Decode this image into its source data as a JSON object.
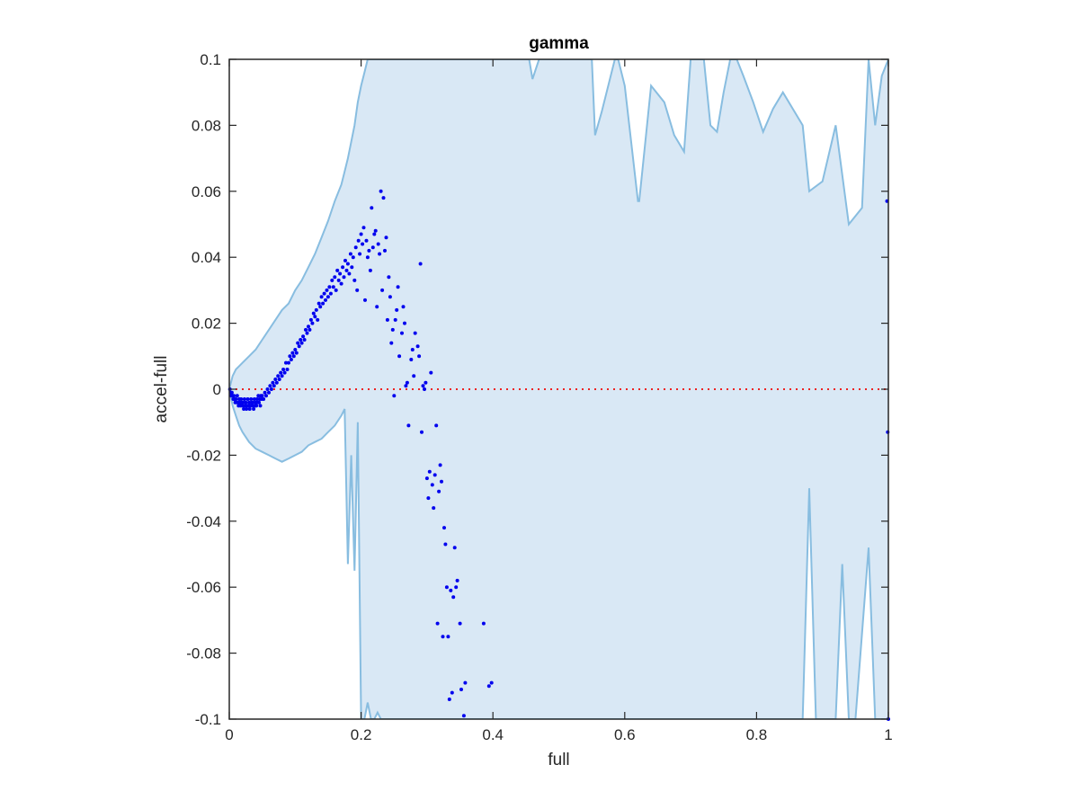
{
  "chart_data": {
    "type": "scatter",
    "title": "gamma",
    "xlabel": "full",
    "ylabel": "accel-full",
    "xlim": [
      0,
      1
    ],
    "ylim": [
      -0.1,
      0.1
    ],
    "xticks": [
      0,
      0.2,
      0.4,
      0.6,
      0.8,
      1
    ],
    "xtick_labels": [
      "0",
      "0.2",
      "0.4",
      "0.6",
      "0.8",
      "1"
    ],
    "yticks": [
      -0.1,
      -0.08,
      -0.06,
      -0.04,
      -0.02,
      0,
      0.02,
      0.04,
      0.06,
      0.08,
      0.1
    ],
    "ytick_labels": [
      "-0.1",
      "-0.08",
      "-0.06",
      "-0.04",
      "-0.02",
      "0",
      "0.02",
      "0.04",
      "0.06",
      "0.08",
      "0.1"
    ],
    "grid": false,
    "colors": {
      "band_fill": "#d9e8f5",
      "band_edge": "#88bde0",
      "points": "#0000ee",
      "reference": "#ee2222",
      "axes": "#262626"
    },
    "reference_line": {
      "y": 0,
      "style": "dotted"
    },
    "band_upper": [
      [
        0.0,
        0.0
      ],
      [
        0.005,
        0.004
      ],
      [
        0.01,
        0.006
      ],
      [
        0.015,
        0.007
      ],
      [
        0.02,
        0.008
      ],
      [
        0.03,
        0.01
      ],
      [
        0.04,
        0.012
      ],
      [
        0.05,
        0.015
      ],
      [
        0.06,
        0.018
      ],
      [
        0.07,
        0.021
      ],
      [
        0.08,
        0.024
      ],
      [
        0.09,
        0.026
      ],
      [
        0.1,
        0.03
      ],
      [
        0.11,
        0.033
      ],
      [
        0.12,
        0.037
      ],
      [
        0.13,
        0.041
      ],
      [
        0.14,
        0.046
      ],
      [
        0.15,
        0.051
      ],
      [
        0.16,
        0.057
      ],
      [
        0.17,
        0.062
      ],
      [
        0.175,
        0.066
      ],
      [
        0.18,
        0.07
      ],
      [
        0.185,
        0.075
      ],
      [
        0.19,
        0.08
      ],
      [
        0.195,
        0.087
      ],
      [
        0.2,
        0.092
      ],
      [
        0.205,
        0.096
      ],
      [
        0.21,
        0.1
      ],
      [
        0.25,
        0.1
      ],
      [
        0.4,
        0.1
      ],
      [
        0.455,
        0.1
      ],
      [
        0.46,
        0.094
      ],
      [
        0.47,
        0.1
      ],
      [
        0.52,
        0.1
      ],
      [
        0.55,
        0.1
      ],
      [
        0.555,
        0.077
      ],
      [
        0.565,
        0.084
      ],
      [
        0.585,
        0.1
      ],
      [
        0.59,
        0.1
      ],
      [
        0.6,
        0.092
      ],
      [
        0.62,
        0.057
      ],
      [
        0.62,
        0.057
      ],
      [
        0.622,
        0.057
      ],
      [
        0.64,
        0.092
      ],
      [
        0.66,
        0.087
      ],
      [
        0.675,
        0.077
      ],
      [
        0.69,
        0.072
      ],
      [
        0.7,
        0.1
      ],
      [
        0.72,
        0.1
      ],
      [
        0.73,
        0.08
      ],
      [
        0.74,
        0.078
      ],
      [
        0.75,
        0.09
      ],
      [
        0.76,
        0.1
      ],
      [
        0.77,
        0.1
      ],
      [
        0.78,
        0.095
      ],
      [
        0.795,
        0.087
      ],
      [
        0.81,
        0.078
      ],
      [
        0.825,
        0.085
      ],
      [
        0.84,
        0.09
      ],
      [
        0.87,
        0.08
      ],
      [
        0.88,
        0.06
      ],
      [
        0.9,
        0.063
      ],
      [
        0.92,
        0.08
      ],
      [
        0.94,
        0.05
      ],
      [
        0.96,
        0.055
      ],
      [
        0.97,
        0.1
      ],
      [
        0.98,
        0.08
      ],
      [
        0.99,
        0.095
      ],
      [
        1.0,
        0.1
      ]
    ],
    "band_lower": [
      [
        0.0,
        0.0
      ],
      [
        0.005,
        -0.005
      ],
      [
        0.01,
        -0.008
      ],
      [
        0.015,
        -0.011
      ],
      [
        0.02,
        -0.013
      ],
      [
        0.03,
        -0.016
      ],
      [
        0.04,
        -0.018
      ],
      [
        0.05,
        -0.019
      ],
      [
        0.06,
        -0.02
      ],
      [
        0.07,
        -0.021
      ],
      [
        0.08,
        -0.022
      ],
      [
        0.09,
        -0.021
      ],
      [
        0.1,
        -0.02
      ],
      [
        0.11,
        -0.019
      ],
      [
        0.12,
        -0.017
      ],
      [
        0.13,
        -0.016
      ],
      [
        0.14,
        -0.015
      ],
      [
        0.15,
        -0.013
      ],
      [
        0.16,
        -0.011
      ],
      [
        0.17,
        -0.008
      ],
      [
        0.175,
        -0.006
      ],
      [
        0.18,
        -0.053
      ],
      [
        0.185,
        -0.02
      ],
      [
        0.19,
        -0.055
      ],
      [
        0.195,
        -0.01
      ],
      [
        0.2,
        -0.1
      ],
      [
        0.205,
        -0.1
      ],
      [
        0.21,
        -0.095
      ],
      [
        0.215,
        -0.1
      ],
      [
        0.22,
        -0.1
      ],
      [
        0.225,
        -0.098
      ],
      [
        0.23,
        -0.1
      ],
      [
        0.24,
        -0.1
      ],
      [
        0.245,
        -0.1
      ],
      [
        0.25,
        -0.1
      ],
      [
        0.4,
        -0.1
      ],
      [
        0.6,
        -0.1
      ],
      [
        0.8,
        -0.1
      ],
      [
        0.87,
        -0.1
      ],
      [
        0.88,
        -0.03
      ],
      [
        0.89,
        -0.1
      ],
      [
        0.92,
        -0.1
      ],
      [
        0.93,
        -0.053
      ],
      [
        0.94,
        -0.1
      ],
      [
        0.95,
        -0.1
      ],
      [
        0.97,
        -0.048
      ],
      [
        0.98,
        -0.1
      ],
      [
        1.0,
        -0.1
      ]
    ],
    "points": [
      [
        0.001,
        0.0
      ],
      [
        0.002,
        -0.001
      ],
      [
        0.003,
        -0.002
      ],
      [
        0.004,
        -0.001
      ],
      [
        0.005,
        -0.002
      ],
      [
        0.006,
        -0.003
      ],
      [
        0.007,
        -0.002
      ],
      [
        0.008,
        -0.003
      ],
      [
        0.009,
        -0.004
      ],
      [
        0.01,
        -0.003
      ],
      [
        0.011,
        -0.004
      ],
      [
        0.012,
        -0.002
      ],
      [
        0.013,
        -0.004
      ],
      [
        0.014,
        -0.005
      ],
      [
        0.015,
        -0.003
      ],
      [
        0.016,
        -0.004
      ],
      [
        0.017,
        -0.005
      ],
      [
        0.018,
        -0.003
      ],
      [
        0.019,
        -0.004
      ],
      [
        0.02,
        -0.005
      ],
      [
        0.021,
        -0.004
      ],
      [
        0.022,
        -0.006
      ],
      [
        0.023,
        -0.003
      ],
      [
        0.024,
        -0.005
      ],
      [
        0.025,
        -0.004
      ],
      [
        0.026,
        -0.006
      ],
      [
        0.027,
        -0.005
      ],
      [
        0.028,
        -0.003
      ],
      [
        0.029,
        -0.005
      ],
      [
        0.03,
        -0.004
      ],
      [
        0.031,
        -0.006
      ],
      [
        0.032,
        -0.005
      ],
      [
        0.033,
        -0.003
      ],
      [
        0.034,
        -0.004
      ],
      [
        0.035,
        -0.005
      ],
      [
        0.036,
        -0.004
      ],
      [
        0.037,
        -0.006
      ],
      [
        0.038,
        -0.003
      ],
      [
        0.039,
        -0.005
      ],
      [
        0.04,
        -0.004
      ],
      [
        0.041,
        -0.005
      ],
      [
        0.042,
        -0.003
      ],
      [
        0.043,
        -0.004
      ],
      [
        0.044,
        -0.002
      ],
      [
        0.045,
        -0.004
      ],
      [
        0.046,
        -0.003
      ],
      [
        0.047,
        -0.005
      ],
      [
        0.048,
        -0.002
      ],
      [
        0.049,
        -0.003
      ],
      [
        0.05,
        -0.002
      ],
      [
        0.052,
        -0.003
      ],
      [
        0.054,
        -0.001
      ],
      [
        0.056,
        -0.002
      ],
      [
        0.058,
        0.0
      ],
      [
        0.06,
        -0.001
      ],
      [
        0.062,
        0.001
      ],
      [
        0.064,
        0.0
      ],
      [
        0.066,
        0.002
      ],
      [
        0.068,
        0.001
      ],
      [
        0.07,
        0.003
      ],
      [
        0.072,
        0.002
      ],
      [
        0.074,
        0.004
      ],
      [
        0.076,
        0.003
      ],
      [
        0.078,
        0.005
      ],
      [
        0.08,
        0.004
      ],
      [
        0.082,
        0.006
      ],
      [
        0.084,
        0.005
      ],
      [
        0.086,
        0.008
      ],
      [
        0.088,
        0.006
      ],
      [
        0.09,
        0.008
      ],
      [
        0.092,
        0.01
      ],
      [
        0.094,
        0.009
      ],
      [
        0.096,
        0.011
      ],
      [
        0.098,
        0.01
      ],
      [
        0.1,
        0.012
      ],
      [
        0.102,
        0.011
      ],
      [
        0.104,
        0.014
      ],
      [
        0.106,
        0.013
      ],
      [
        0.108,
        0.015
      ],
      [
        0.11,
        0.014
      ],
      [
        0.112,
        0.016
      ],
      [
        0.114,
        0.015
      ],
      [
        0.116,
        0.018
      ],
      [
        0.118,
        0.017
      ],
      [
        0.12,
        0.019
      ],
      [
        0.122,
        0.018
      ],
      [
        0.124,
        0.021
      ],
      [
        0.126,
        0.02
      ],
      [
        0.128,
        0.023
      ],
      [
        0.13,
        0.022
      ],
      [
        0.132,
        0.024
      ],
      [
        0.134,
        0.021
      ],
      [
        0.136,
        0.026
      ],
      [
        0.138,
        0.025
      ],
      [
        0.14,
        0.028
      ],
      [
        0.142,
        0.026
      ],
      [
        0.144,
        0.029
      ],
      [
        0.146,
        0.027
      ],
      [
        0.148,
        0.03
      ],
      [
        0.15,
        0.028
      ],
      [
        0.152,
        0.031
      ],
      [
        0.154,
        0.029
      ],
      [
        0.156,
        0.033
      ],
      [
        0.158,
        0.031
      ],
      [
        0.16,
        0.034
      ],
      [
        0.162,
        0.03
      ],
      [
        0.164,
        0.036
      ],
      [
        0.166,
        0.033
      ],
      [
        0.168,
        0.035
      ],
      [
        0.17,
        0.032
      ],
      [
        0.172,
        0.037
      ],
      [
        0.174,
        0.034
      ],
      [
        0.176,
        0.039
      ],
      [
        0.178,
        0.036
      ],
      [
        0.18,
        0.038
      ],
      [
        0.182,
        0.035
      ],
      [
        0.184,
        0.041
      ],
      [
        0.186,
        0.037
      ],
      [
        0.188,
        0.04
      ],
      [
        0.19,
        0.033
      ],
      [
        0.192,
        0.043
      ],
      [
        0.194,
        0.03
      ],
      [
        0.196,
        0.045
      ],
      [
        0.198,
        0.041
      ],
      [
        0.2,
        0.047
      ],
      [
        0.202,
        0.044
      ],
      [
        0.204,
        0.049
      ],
      [
        0.206,
        0.027
      ],
      [
        0.208,
        0.045
      ],
      [
        0.21,
        0.04
      ],
      [
        0.212,
        0.042
      ],
      [
        0.214,
        0.036
      ],
      [
        0.216,
        0.055
      ],
      [
        0.218,
        0.043
      ],
      [
        0.22,
        0.047
      ],
      [
        0.222,
        0.048
      ],
      [
        0.224,
        0.025
      ],
      [
        0.226,
        0.044
      ],
      [
        0.228,
        0.041
      ],
      [
        0.23,
        0.06
      ],
      [
        0.232,
        0.03
      ],
      [
        0.234,
        0.058
      ],
      [
        0.236,
        0.042
      ],
      [
        0.238,
        0.046
      ],
      [
        0.24,
        0.021
      ],
      [
        0.242,
        0.034
      ],
      [
        0.244,
        0.028
      ],
      [
        0.246,
        0.014
      ],
      [
        0.248,
        0.018
      ],
      [
        0.25,
        -0.002
      ],
      [
        0.252,
        0.021
      ],
      [
        0.254,
        0.024
      ],
      [
        0.256,
        0.031
      ],
      [
        0.258,
        0.01
      ],
      [
        0.262,
        0.017
      ],
      [
        0.264,
        0.025
      ],
      [
        0.266,
        0.02
      ],
      [
        0.268,
        0.001
      ],
      [
        0.27,
        0.002
      ],
      [
        0.272,
        -0.011
      ],
      [
        0.276,
        0.009
      ],
      [
        0.278,
        0.012
      ],
      [
        0.28,
        0.004
      ],
      [
        0.282,
        0.017
      ],
      [
        0.286,
        0.013
      ],
      [
        0.288,
        0.01
      ],
      [
        0.29,
        0.038
      ],
      [
        0.292,
        -0.013
      ],
      [
        0.294,
        0.001
      ],
      [
        0.296,
        0.0
      ],
      [
        0.298,
        0.002
      ],
      [
        0.3,
        -0.027
      ],
      [
        0.302,
        -0.033
      ],
      [
        0.304,
        -0.025
      ],
      [
        0.306,
        0.005
      ],
      [
        0.308,
        -0.029
      ],
      [
        0.31,
        -0.036
      ],
      [
        0.312,
        -0.026
      ],
      [
        0.314,
        -0.011
      ],
      [
        0.316,
        -0.071
      ],
      [
        0.318,
        -0.031
      ],
      [
        0.32,
        -0.023
      ],
      [
        0.322,
        -0.028
      ],
      [
        0.324,
        -0.075
      ],
      [
        0.326,
        -0.042
      ],
      [
        0.328,
        -0.047
      ],
      [
        0.33,
        -0.06
      ],
      [
        0.332,
        -0.075
      ],
      [
        0.334,
        -0.094
      ],
      [
        0.336,
        -0.061
      ],
      [
        0.338,
        -0.092
      ],
      [
        0.34,
        -0.063
      ],
      [
        0.342,
        -0.048
      ],
      [
        0.344,
        -0.06
      ],
      [
        0.346,
        -0.058
      ],
      [
        0.35,
        -0.071
      ],
      [
        0.352,
        -0.091
      ],
      [
        0.356,
        -0.099
      ],
      [
        0.358,
        -0.089
      ],
      [
        0.386,
        -0.071
      ],
      [
        0.394,
        -0.09
      ],
      [
        0.398,
        -0.089
      ],
      [
        0.998,
        0.057
      ],
      [
        0.999,
        -0.013
      ],
      [
        1.0,
        -0.1
      ]
    ]
  }
}
